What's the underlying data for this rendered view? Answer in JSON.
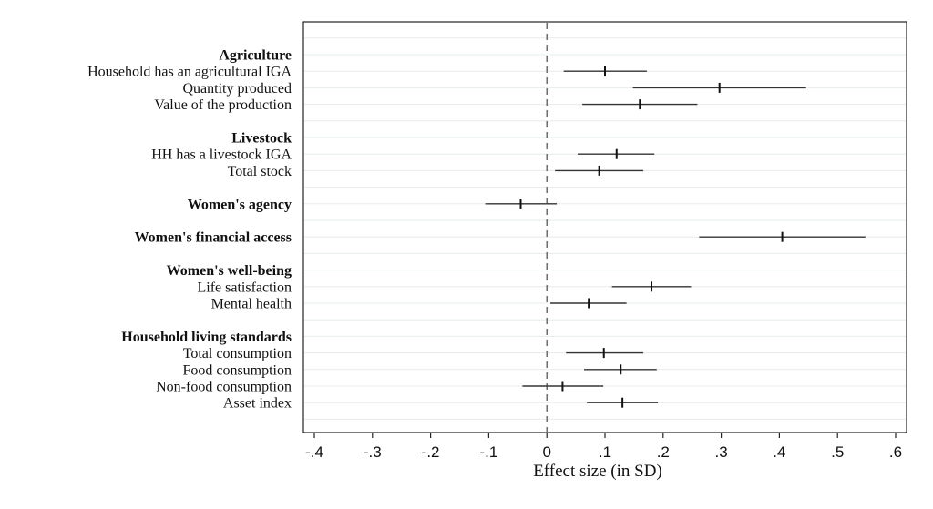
{
  "chart_data": {
    "type": "forest",
    "title": "",
    "xlabel": "Effect size (in SD)",
    "xlim": [
      -0.4,
      0.6
    ],
    "xticks": [
      {
        "value": -0.4,
        "label": "-.4"
      },
      {
        "value": -0.3,
        "label": "-.3"
      },
      {
        "value": -0.2,
        "label": "-.2"
      },
      {
        "value": -0.1,
        "label": "-.1"
      },
      {
        "value": 0,
        "label": "0"
      },
      {
        "value": 0.1,
        "label": ".1"
      },
      {
        "value": 0.2,
        "label": ".2"
      },
      {
        "value": 0.3,
        "label": ".3"
      },
      {
        "value": 0.4,
        "label": ".4"
      },
      {
        "value": 0.5,
        "label": ".5"
      },
      {
        "value": 0.6,
        "label": ".6"
      }
    ],
    "reference_line": 0,
    "grid": true,
    "rows": [
      {
        "label": "Agriculture",
        "header": true
      },
      {
        "label": "Household has an agricultural IGA",
        "estimate": 0.1,
        "lower": 0.029,
        "upper": 0.172
      },
      {
        "label": "Quantity produced",
        "estimate": 0.297,
        "lower": 0.148,
        "upper": 0.446
      },
      {
        "label": "Value of the production",
        "estimate": 0.16,
        "lower": 0.061,
        "upper": 0.259
      },
      {
        "label": "",
        "spacer": true
      },
      {
        "label": "Livestock",
        "header": true
      },
      {
        "label": "HH has a livestock IGA",
        "estimate": 0.12,
        "lower": 0.053,
        "upper": 0.185
      },
      {
        "label": "Total stock",
        "estimate": 0.09,
        "lower": 0.014,
        "upper": 0.166
      },
      {
        "label": "",
        "spacer": true
      },
      {
        "label": "Women's agency",
        "header": true,
        "estimate": -0.045,
        "lower": -0.106,
        "upper": 0.017
      },
      {
        "label": "",
        "spacer": true
      },
      {
        "label": "Women's financial access",
        "header": true,
        "estimate": 0.405,
        "lower": 0.262,
        "upper": 0.548
      },
      {
        "label": "",
        "spacer": true
      },
      {
        "label": "Women's well-being",
        "header": true
      },
      {
        "label": "Life satisfaction",
        "estimate": 0.18,
        "lower": 0.112,
        "upper": 0.248
      },
      {
        "label": "Mental health",
        "estimate": 0.072,
        "lower": 0.006,
        "upper": 0.137
      },
      {
        "label": "",
        "spacer": true
      },
      {
        "label": "Household living standards",
        "header": true
      },
      {
        "label": "Total consumption",
        "estimate": 0.098,
        "lower": 0.033,
        "upper": 0.166
      },
      {
        "label": "Food consumption",
        "estimate": 0.127,
        "lower": 0.064,
        "upper": 0.189
      },
      {
        "label": "Non-food consumption",
        "estimate": 0.027,
        "lower": -0.042,
        "upper": 0.097
      },
      {
        "label": "Asset index",
        "estimate": 0.13,
        "lower": 0.069,
        "upper": 0.191
      }
    ]
  }
}
